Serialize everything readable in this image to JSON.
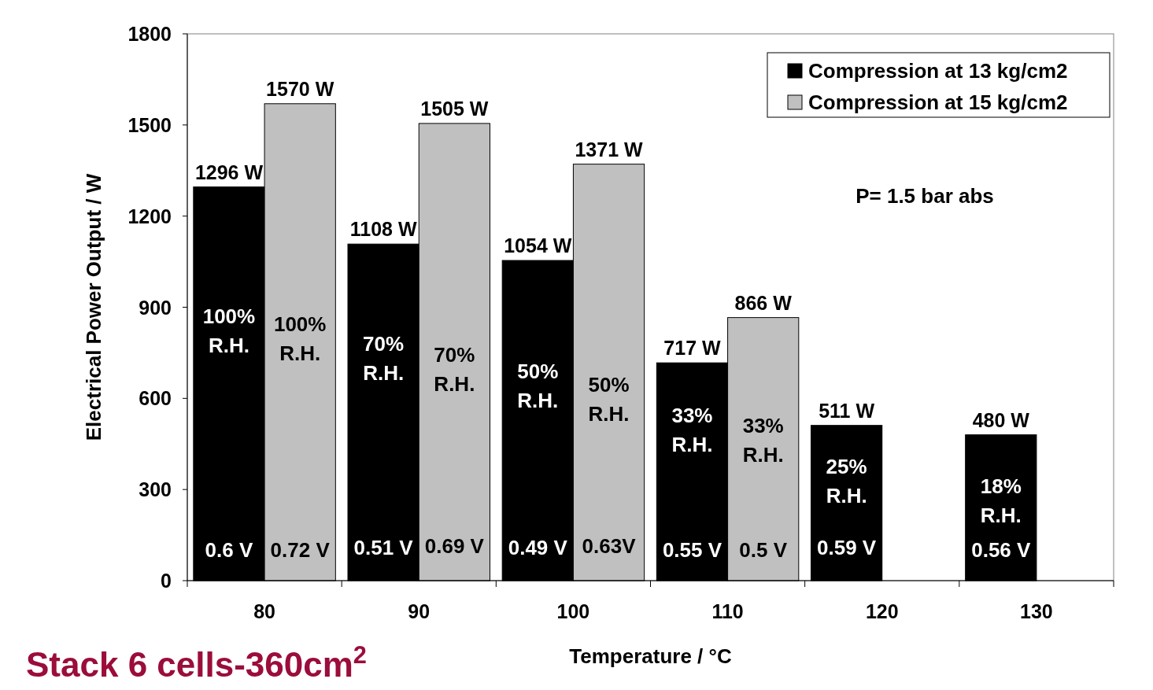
{
  "chart_data": {
    "type": "bar",
    "title": "Stack 6 cells-360cm$^{2}$",
    "xlabel": "Temperature / °C",
    "ylabel": "Electrical Power Output / W",
    "categories": [
      "80",
      "90",
      "100",
      "110",
      "120",
      "130"
    ],
    "series": [
      {
        "name": "Compression at 13 kg/cm2",
        "color": "#000000",
        "values": [
          1296,
          1108,
          1054,
          717,
          511,
          480
        ],
        "value_labels": [
          "1296 W",
          "1108 W",
          "1054 W",
          "717 W",
          "511 W",
          "480 W"
        ]
      },
      {
        "name": "Compression at 15 kg/cm2",
        "color": "#c0c0c0",
        "values": [
          1570,
          1505,
          1371,
          866,
          null,
          null
        ],
        "value_labels": [
          "1570 W",
          "1505 W",
          "1371 W",
          "866 W",
          null,
          null
        ]
      }
    ],
    "ylim": [
      0,
      1800
    ],
    "yticks": [
      0,
      300,
      600,
      900,
      1200,
      1500,
      1800
    ],
    "grid": false,
    "legend": "top right",
    "annotations": [
      "P= 1.5 bar abs",
      {
        "text": "100% R.H.",
        "x": "80",
        "y": 827
      },
      {
        "text": "0.6 V",
        "x": "80",
        "y": 100
      },
      {
        "text": "100% R.H.",
        "x": "80",
        "y": 801
      },
      {
        "text": "0.72 V",
        "x": "80",
        "y": 100
      },
      {
        "text": "70% R.H.",
        "x": "90",
        "y": 736
      },
      {
        "text": "0.51 V",
        "x": "90",
        "y": 110
      },
      {
        "text": "70% R.H.",
        "x": "90",
        "y": 698
      },
      {
        "text": "0.69 V",
        "x": "90",
        "y": 115
      },
      {
        "text": "50% R.H.",
        "x": "100",
        "y": 646
      },
      {
        "text": "0.49 V",
        "x": "100",
        "y": 110
      },
      {
        "text": "50% R.H.",
        "x": "100",
        "y": 600
      },
      {
        "text": "0.63V",
        "x": "100",
        "y": 115
      },
      {
        "text": "33% R.H.",
        "x": "110",
        "y": 499
      },
      {
        "text": "0.55 V",
        "x": "110",
        "y": 100
      },
      {
        "text": "33% R.H.",
        "x": "110",
        "y": 465
      },
      {
        "text": "0.5 V",
        "x": "110",
        "y": 100
      },
      {
        "text": "25% R.H.",
        "x": "120",
        "y": 331
      },
      {
        "text": "0.59 V",
        "x": "120",
        "y": 110
      },
      {
        "text": "18% R.H.",
        "x": "130",
        "y": 266
      },
      {
        "text": "0.56 V",
        "x": "130",
        "y": 100
      }
    ]
  }
}
